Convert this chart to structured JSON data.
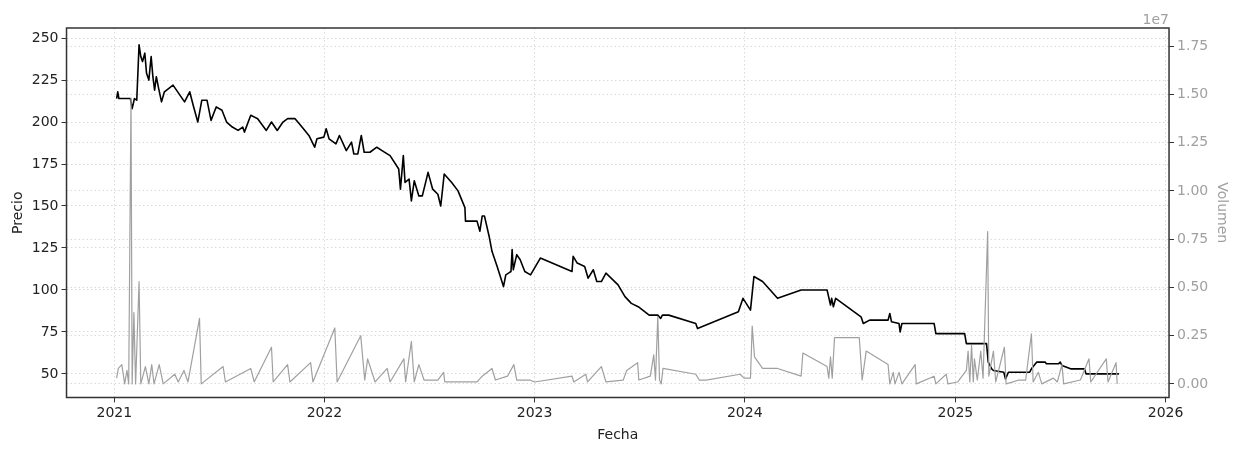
{
  "chart_data": {
    "type": "line",
    "xlabel": "Fecha",
    "ylabel": "Precio",
    "y2label": "Volumen",
    "annotations": [
      "1e7"
    ],
    "xlim": [
      "2020-10-10",
      "2026-01-07"
    ],
    "xticks": [
      "2021",
      "2022",
      "2023",
      "2024",
      "2025",
      "2026"
    ],
    "ylim": [
      36,
      256
    ],
    "yticks": [
      50,
      75,
      100,
      125,
      150,
      175,
      200,
      225,
      250
    ],
    "y2lim": [
      -0.07,
      1.845
    ],
    "y2ticks": [
      {
        "value": 0,
        "label": "0.00"
      },
      0.25,
      {
        "value": 0.5,
        "label": "0.50"
      },
      0.75,
      {
        "value": 1,
        "label": "1.00"
      },
      1.25,
      {
        "value": 1.5,
        "label": "1.50"
      },
      1.75
    ],
    "grid": true,
    "legend": false,
    "marker": "none",
    "line_style": "solid",
    "series": [
      {
        "axis": "y2",
        "color": "#a0a0a0",
        "x": [
          "2021-01-05",
          "2021-01-08",
          "2021-01-14",
          "2021-01-19",
          "2021-01-23",
          "2021-01-26",
          "2021-01-30",
          "2021-02-01",
          "2021-02-04",
          "2021-02-07",
          "2021-02-13",
          "2021-02-16",
          "2021-02-24",
          "2021-03-02",
          "2021-03-07",
          "2021-03-11",
          "2021-03-20",
          "2021-03-27",
          "2021-04-16",
          "2021-04-22",
          "2021-05-02",
          "2021-05-09",
          "2021-05-29",
          "2021-06-01",
          "2021-07-09",
          "2021-07-13",
          "2021-08-26",
          "2021-09-01",
          "2021-10-01",
          "2021-10-04",
          "2021-10-29",
          "2021-11-02",
          "2021-12-08",
          "2021-12-12",
          "2022-01-19",
          "2022-01-23",
          "2022-03-05",
          "2022-03-12",
          "2022-03-17",
          "2022-03-30",
          "2022-04-20",
          "2022-04-25",
          "2022-05-19",
          "2022-05-22",
          "2022-06-01",
          "2022-06-06",
          "2022-06-14",
          "2022-06-23",
          "2022-07-17",
          "2022-07-27",
          "2022-07-29",
          "2022-09-23",
          "2022-10-02",
          "2022-10-19",
          "2022-10-25",
          "2022-11-15",
          "2022-11-26",
          "2022-12-01",
          "2022-12-24",
          "2023-01-01",
          "2023-03-07",
          "2023-03-10",
          "2023-03-31",
          "2023-04-03",
          "2023-04-27",
          "2023-05-05",
          "2023-06-04",
          "2023-06-10",
          "2023-06-29",
          "2023-07-01",
          "2023-07-21",
          "2023-07-27",
          "2023-07-30",
          "2023-08-03",
          "2023-08-06",
          "2023-08-09",
          "2023-08-12",
          "2023-10-08",
          "2023-10-14",
          "2023-10-26",
          "2023-12-24",
          "2023-12-31",
          "2024-01-11",
          "2024-01-14",
          "2024-01-18",
          "2024-02-01",
          "2024-02-27",
          "2024-04-08",
          "2024-04-11",
          "2024-05-23",
          "2024-05-26",
          "2024-05-29",
          "2024-06-01",
          "2024-06-05",
          "2024-07-18",
          "2024-07-23",
          "2024-07-30",
          "2024-09-06",
          "2024-09-09",
          "2024-09-15",
          "2024-09-18",
          "2024-09-25",
          "2024-09-30",
          "2024-10-23",
          "2024-10-25",
          "2024-11-25",
          "2024-11-28",
          "2024-12-16",
          "2024-12-19",
          "2025-01-05",
          "2025-01-20",
          "2025-01-23",
          "2025-01-26",
          "2025-01-29",
          "2025-02-01",
          "2025-02-03",
          "2025-02-08",
          "2025-02-14",
          "2025-02-18",
          "2025-02-26",
          "2025-02-28",
          "2025-03-08",
          "2025-03-12",
          "2025-03-27",
          "2025-03-30",
          "2025-04-21",
          "2025-05-03",
          "2025-05-13",
          "2025-05-16",
          "2025-05-25",
          "2025-05-31",
          "2025-06-20",
          "2025-06-27",
          "2025-07-05",
          "2025-07-08",
          "2025-08-06",
          "2025-08-21",
          "2025-08-24",
          "2025-09-20",
          "2025-09-23",
          "2025-10-07",
          "2025-10-09"
        ],
        "values": [
          0.03,
          0.08,
          0.1,
          0,
          0.07,
          0,
          1.48,
          0,
          0.37,
          0,
          0.53,
          0,
          0.09,
          0,
          0.1,
          0,
          0.1,
          0,
          0.05,
          0.01,
          0.07,
          0.01,
          0.34,
          0,
          0.09,
          0.01,
          0.08,
          0.01,
          0.19,
          0.01,
          0.1,
          0.01,
          0.11,
          0.01,
          0.29,
          0.01,
          0.25,
          0.02,
          0.13,
          0.01,
          0.08,
          0.01,
          0.13,
          0.01,
          0.22,
          0.01,
          0.1,
          0.02,
          0.02,
          0.06,
          0.01,
          0.01,
          0.04,
          0.08,
          0.02,
          0.04,
          0.1,
          0.02,
          0.02,
          0.01,
          0.04,
          0.01,
          0.05,
          0.01,
          0.09,
          0.01,
          0.02,
          0.07,
          0.11,
          0.02,
          0.04,
          0.15,
          0.02,
          0.35,
          0.02,
          0,
          0.08,
          0.05,
          0.02,
          0.02,
          0.05,
          0.03,
          0.03,
          0.3,
          0.14,
          0.08,
          0.08,
          0.04,
          0.16,
          0.09,
          0.03,
          0.14,
          0.03,
          0.24,
          0.24,
          0.02,
          0.17,
          0.1,
          0,
          0.06,
          0,
          0.06,
          0,
          0.1,
          0,
          0.04,
          0,
          0.05,
          0,
          0.01,
          0.07,
          0.17,
          0.01,
          0.2,
          0.01,
          0.13,
          0.02,
          0.17,
          0.03,
          0.79,
          0.04,
          0.17,
          0.01,
          0.19,
          0,
          0.02,
          0.02,
          0.26,
          0.01,
          0.06,
          0,
          0.03,
          0.01,
          0.1,
          0,
          0.02,
          0.13,
          0.01,
          0.13,
          0.01,
          0.11,
          0
        ]
      },
      {
        "color": "#000000",
        "x": [
          "2021-01-05",
          "2021-01-07",
          "2021-01-09",
          "2021-01-29",
          "2021-02-01",
          "2021-02-05",
          "2021-02-09",
          "2021-02-13",
          "2021-02-16",
          "2021-02-19",
          "2021-02-23",
          "2021-02-26",
          "2021-03-02",
          "2021-03-06",
          "2021-03-09",
          "2021-03-12",
          "2021-03-15",
          "2021-03-19",
          "2021-03-24",
          "2021-03-29",
          "2021-04-13",
          "2021-04-19",
          "2021-05-03",
          "2021-05-12",
          "2021-05-18",
          "2021-05-26",
          "2021-06-02",
          "2021-06-11",
          "2021-06-18",
          "2021-06-27",
          "2021-07-07",
          "2021-07-15",
          "2021-07-25",
          "2021-08-04",
          "2021-08-12",
          "2021-08-15",
          "2021-08-26",
          "2021-09-07",
          "2021-09-22",
          "2021-10-01",
          "2021-10-11",
          "2021-10-21",
          "2021-10-29",
          "2021-11-11",
          "2021-11-23",
          "2021-12-05",
          "2021-12-15",
          "2021-12-19",
          "2021-12-31",
          "2022-01-04",
          "2022-01-09",
          "2022-01-21",
          "2022-01-27",
          "2022-02-08",
          "2022-02-17",
          "2022-02-21",
          "2022-02-28",
          "2022-03-06",
          "2022-03-11",
          "2022-03-21",
          "2022-04-02",
          "2022-04-11",
          "2022-04-25",
          "2022-05-10",
          "2022-05-13",
          "2022-05-18",
          "2022-05-21",
          "2022-05-28",
          "2022-06-01",
          "2022-06-06",
          "2022-06-14",
          "2022-06-20",
          "2022-06-30",
          "2022-07-08",
          "2022-07-17",
          "2022-07-22",
          "2022-07-28",
          "2022-08-10",
          "2022-08-21",
          "2022-09-02",
          "2022-09-03",
          "2022-09-23",
          "2022-09-28",
          "2022-10-02",
          "2022-10-06",
          "2022-10-14",
          "2022-10-19",
          "2022-10-28",
          "2022-11-08",
          "2022-11-12",
          "2022-11-21",
          "2022-11-23",
          "2022-11-25",
          "2022-12-01",
          "2022-12-07",
          "2022-12-15",
          "2022-12-25",
          "2023-01-11",
          "2023-03-07",
          "2023-03-09",
          "2023-03-16",
          "2023-03-29",
          "2023-04-04",
          "2023-04-13",
          "2023-04-19",
          "2023-04-27",
          "2023-05-05",
          "2023-05-26",
          "2023-06-07",
          "2023-06-18",
          "2023-06-30",
          "2023-07-19",
          "2023-08-03",
          "2023-08-08",
          "2023-08-11",
          "2023-08-22",
          "2023-10-08",
          "2023-10-11",
          "2023-12-21",
          "2023-12-29",
          "2024-01-11",
          "2024-01-17",
          "2024-02-01",
          "2024-02-27",
          "2024-04-08",
          "2024-05-23",
          "2024-05-29",
          "2024-05-31",
          "2024-06-03",
          "2024-06-07",
          "2024-07-21",
          "2024-07-25",
          "2024-08-05",
          "2024-09-06",
          "2024-09-09",
          "2024-09-12",
          "2024-09-25",
          "2024-09-27",
          "2024-09-30",
          "2024-11-25",
          "2024-11-28",
          "2025-01-17",
          "2025-01-20",
          "2025-02-24",
          "2025-02-27",
          "2025-03-05",
          "2025-03-08",
          "2025-03-26",
          "2025-03-29",
          "2025-04-03",
          "2025-05-10",
          "2025-05-13",
          "2025-05-22",
          "2025-06-06",
          "2025-06-08",
          "2025-06-29",
          "2025-07-02",
          "2025-07-05",
          "2025-07-20",
          "2025-08-13",
          "2025-08-16",
          "2025-10-12"
        ],
        "values": [
          214,
          218,
          214,
          214,
          208,
          214,
          213,
          246,
          239,
          236,
          241,
          229,
          225,
          239,
          227,
          219,
          227,
          220,
          212,
          218,
          222,
          219,
          212,
          218,
          210,
          200,
          213,
          213,
          201,
          209,
          207,
          200,
          197,
          195,
          197,
          194,
          204,
          202,
          195,
          200,
          195,
          200,
          202,
          202,
          197,
          192,
          185,
          190,
          191,
          196,
          190,
          187,
          192,
          183,
          188,
          181,
          181,
          192,
          182,
          182,
          185,
          183,
          180,
          172,
          160,
          180,
          164,
          166,
          153,
          165,
          156,
          156,
          170,
          160,
          157,
          150,
          169,
          164,
          159,
          149,
          141,
          141,
          135,
          144,
          144,
          132,
          123,
          114,
          102,
          109,
          111,
          124,
          112,
          121,
          118,
          111,
          109,
          119,
          111,
          120,
          116,
          114,
          107,
          112,
          105,
          105,
          110,
          103,
          96,
          92,
          90,
          85,
          85,
          83,
          85,
          85,
          80,
          77,
          87,
          95,
          88,
          108,
          105,
          95,
          100,
          100,
          91,
          95,
          90,
          95,
          84,
          80,
          82,
          82,
          86,
          81,
          80,
          75,
          80,
          80,
          74,
          74,
          68,
          68,
          57,
          53,
          52,
          51,
          47,
          51,
          51,
          53,
          57,
          57,
          56,
          56,
          57,
          55,
          53,
          53,
          50,
          50
        ]
      }
    ]
  }
}
